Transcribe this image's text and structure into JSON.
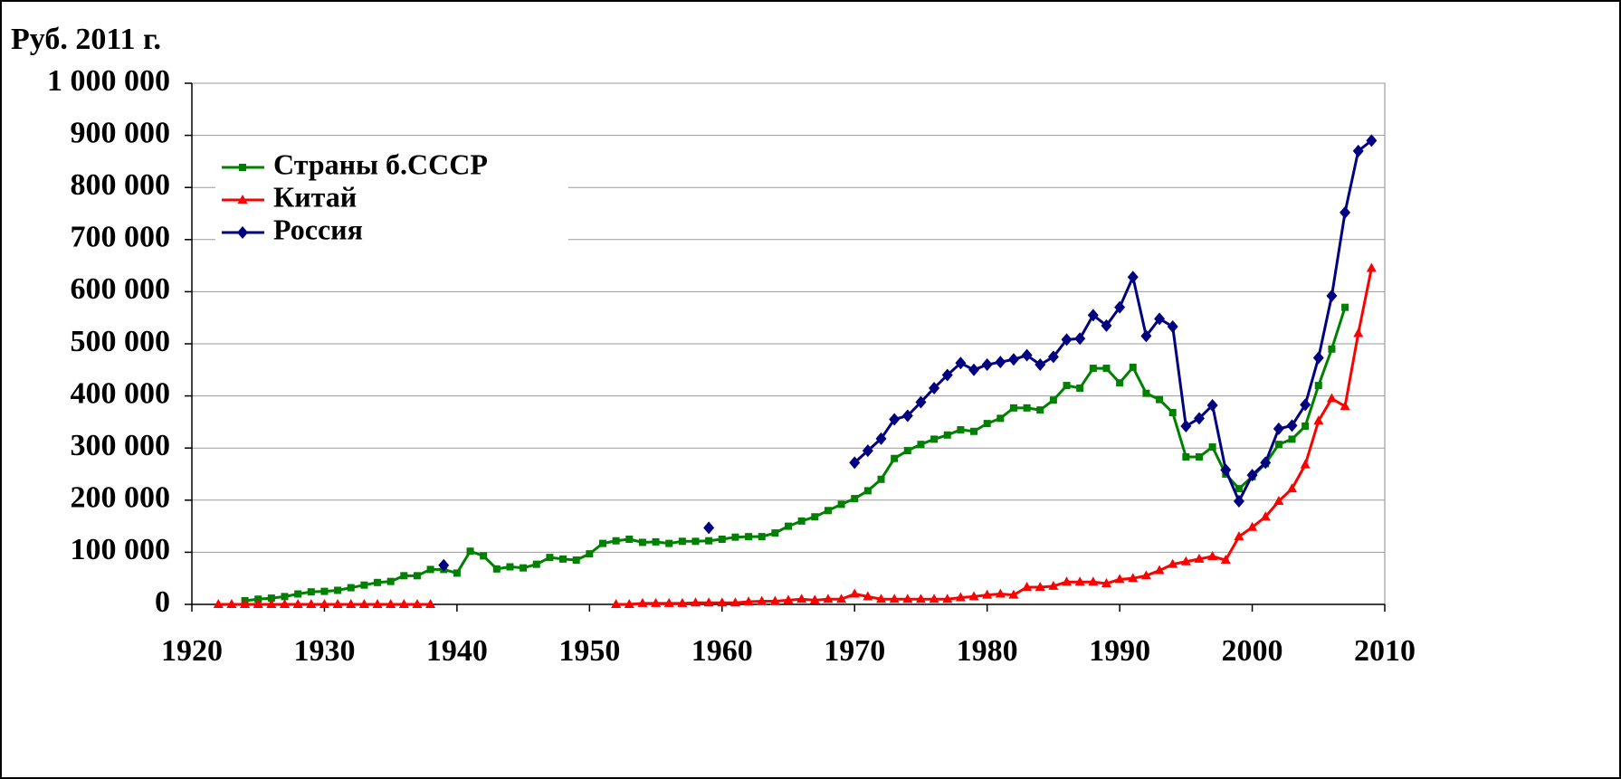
{
  "chart_data": {
    "type": "line",
    "y_label": "Руб. 2011 г.",
    "x": [
      1922,
      1923,
      1924,
      1925,
      1926,
      1927,
      1928,
      1929,
      1930,
      1931,
      1932,
      1933,
      1934,
      1935,
      1936,
      1937,
      1938,
      1939,
      1940,
      1941,
      1942,
      1943,
      1944,
      1945,
      1946,
      1947,
      1948,
      1949,
      1950,
      1951,
      1952,
      1953,
      1954,
      1955,
      1956,
      1957,
      1958,
      1959,
      1960,
      1961,
      1962,
      1963,
      1964,
      1965,
      1966,
      1967,
      1968,
      1969,
      1970,
      1971,
      1972,
      1973,
      1974,
      1975,
      1976,
      1977,
      1978,
      1979,
      1980,
      1981,
      1982,
      1983,
      1984,
      1985,
      1986,
      1987,
      1988,
      1989,
      1990,
      1991,
      1992,
      1993,
      1994,
      1995,
      1996,
      1997,
      1998,
      1999,
      2000,
      2001,
      2002,
      2003,
      2004,
      2005,
      2006,
      2007,
      2008,
      2009
    ],
    "series": [
      {
        "name": "Страны б.СССР",
        "color": "#008000",
        "marker": "square",
        "values": [
          null,
          null,
          7000,
          10000,
          12000,
          15000,
          20000,
          24000,
          25000,
          27000,
          32000,
          37000,
          42000,
          44000,
          55000,
          55000,
          67000,
          67000,
          60000,
          102000,
          93000,
          68000,
          72000,
          70000,
          77000,
          90000,
          87000,
          85000,
          97000,
          117000,
          122000,
          125000,
          119000,
          120000,
          117000,
          121000,
          121000,
          122000,
          125000,
          129000,
          130000,
          130000,
          137000,
          150000,
          160000,
          168000,
          180000,
          192000,
          203000,
          218000,
          240000,
          280000,
          295000,
          307000,
          317000,
          325000,
          335000,
          332000,
          347000,
          357000,
          377000,
          377000,
          373000,
          392000,
          420000,
          415000,
          453000,
          453000,
          425000,
          455000,
          405000,
          393000,
          368000,
          283000,
          283000,
          302000,
          250000,
          222000,
          245000,
          270000,
          307000,
          317000,
          342000,
          420000,
          490000,
          570000,
          null,
          null
        ]
      },
      {
        "name": "Китай",
        "color": "#ff0000",
        "marker": "triangle",
        "values": [
          0,
          0,
          0,
          0,
          0,
          0,
          0,
          0,
          0,
          0,
          0,
          0,
          0,
          0,
          0,
          0,
          0,
          null,
          null,
          null,
          null,
          null,
          null,
          null,
          null,
          null,
          null,
          null,
          null,
          null,
          0,
          0,
          2000,
          2000,
          2000,
          2000,
          3000,
          3000,
          3000,
          3000,
          5000,
          6000,
          6000,
          8000,
          10000,
          8000,
          10000,
          10000,
          20000,
          15000,
          10000,
          10000,
          10000,
          10000,
          10000,
          10000,
          13000,
          15000,
          18000,
          20000,
          18000,
          33000,
          33000,
          35000,
          43000,
          43000,
          43000,
          40000,
          48000,
          50000,
          55000,
          65000,
          77000,
          82000,
          87000,
          92000,
          85000,
          130000,
          148000,
          168000,
          198000,
          222000,
          268000,
          352000,
          395000,
          380000,
          520000,
          645000
        ]
      },
      {
        "name": "Россия",
        "color": "#000080",
        "marker": "diamond",
        "values": [
          null,
          null,
          null,
          null,
          null,
          null,
          null,
          null,
          null,
          null,
          null,
          null,
          null,
          null,
          null,
          null,
          null,
          75000,
          null,
          null,
          null,
          null,
          null,
          null,
          null,
          null,
          null,
          null,
          null,
          null,
          null,
          null,
          null,
          null,
          null,
          null,
          null,
          147000,
          null,
          null,
          null,
          null,
          null,
          null,
          null,
          null,
          null,
          null,
          272000,
          295000,
          318000,
          355000,
          362000,
          388000,
          415000,
          440000,
          463000,
          450000,
          460000,
          465000,
          470000,
          478000,
          460000,
          475000,
          508000,
          510000,
          555000,
          535000,
          570000,
          628000,
          515000,
          548000,
          533000,
          342000,
          357000,
          382000,
          258000,
          198000,
          248000,
          272000,
          337000,
          343000,
          383000,
          473000,
          592000,
          752000,
          870000,
          890000
        ]
      }
    ],
    "xlim": [
      1920,
      2010
    ],
    "xticks": [
      1920,
      1930,
      1940,
      1950,
      1960,
      1970,
      1980,
      1990,
      2000,
      2010
    ],
    "ylim": [
      0,
      1000000
    ],
    "yticks": [
      0,
      {
        "value": 100000,
        "label": "100 000"
      },
      {
        "value": 200000,
        "label": "200 000"
      },
      {
        "value": 300000,
        "label": "300 000"
      },
      {
        "value": 400000,
        "label": "400 000"
      },
      {
        "value": 500000,
        "label": "500 000"
      },
      {
        "value": 600000,
        "label": "600 000"
      },
      {
        "value": 700000,
        "label": "700 000"
      },
      {
        "value": 800000,
        "label": "800 000"
      },
      {
        "value": 900000,
        "label": "900 000"
      },
      {
        "value": 1000000,
        "label": "1 000 000"
      }
    ],
    "grid": true,
    "legend": "upper left"
  }
}
